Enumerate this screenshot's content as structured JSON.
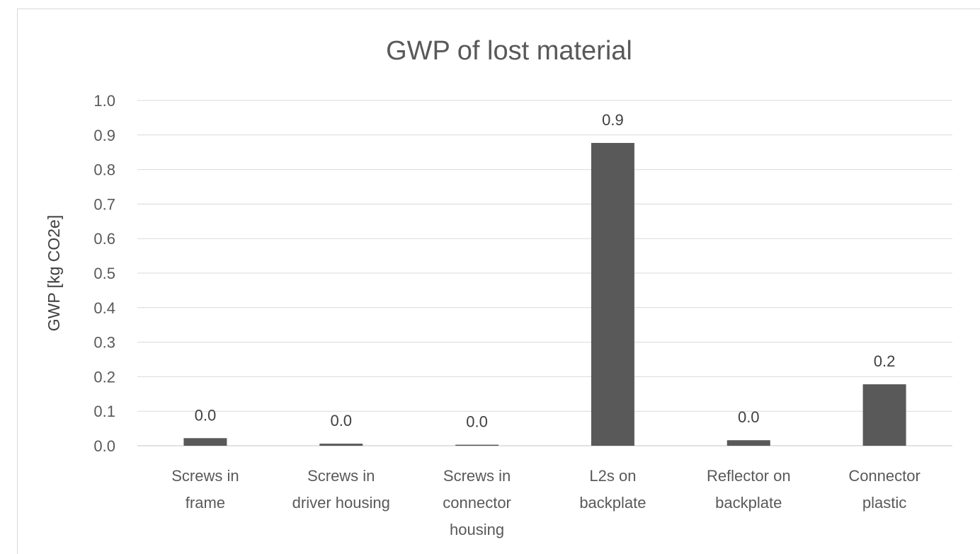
{
  "chart_data": {
    "type": "bar",
    "title": "GWP of lost material",
    "xlabel": "",
    "ylabel": "GWP [kg CO2e]",
    "ylim": [
      0,
      1.0
    ],
    "yticks": [
      "0.0",
      "0.1",
      "0.2",
      "0.3",
      "0.4",
      "0.5",
      "0.6",
      "0.7",
      "0.8",
      "0.9",
      "1.0"
    ],
    "categories": [
      [
        "Screws in",
        "frame"
      ],
      [
        "Screws in",
        "driver housing"
      ],
      [
        "Screws in",
        "connector",
        "housing"
      ],
      [
        "L2s on",
        "backplate"
      ],
      [
        "Reflector on",
        "backplate"
      ],
      [
        "Connector",
        "plastic"
      ]
    ],
    "values": [
      0.022,
      0.006,
      0.003,
      0.877,
      0.016,
      0.178
    ],
    "data_labels": [
      "0.0",
      "0.0",
      "0.0",
      "0.9",
      "0.0",
      "0.2"
    ],
    "bar_color": "#595959",
    "grid_color": "#d9d9d9",
    "grid": true,
    "legend": "none"
  }
}
